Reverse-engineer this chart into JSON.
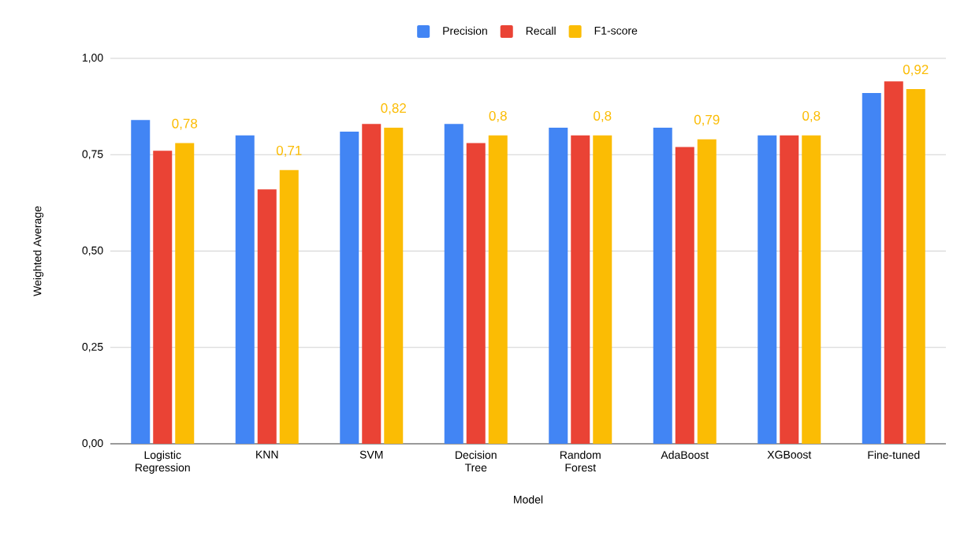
{
  "chart_data": {
    "type": "bar",
    "xlabel": "Model",
    "ylabel": "Weighted Average",
    "categories": [
      "Logistic Regression",
      "KNN",
      "SVM",
      "Decision Tree",
      "Random Forest",
      "AdaBoost",
      "XGBoost",
      "Fine-tuned"
    ],
    "series": [
      {
        "name": "Precision",
        "color": "#4285f4",
        "values": [
          0.84,
          0.8,
          0.81,
          0.83,
          0.82,
          0.82,
          0.8,
          0.91
        ]
      },
      {
        "name": "Recall",
        "color": "#ea4335",
        "values": [
          0.76,
          0.66,
          0.83,
          0.78,
          0.8,
          0.77,
          0.8,
          0.94
        ]
      },
      {
        "name": "F1-score",
        "color": "#fbbc04",
        "values": [
          0.78,
          0.71,
          0.82,
          0.8,
          0.8,
          0.79,
          0.8,
          0.92
        ],
        "value_labels": [
          "0,78",
          "0,71",
          "0,82",
          "0,8",
          "0,8",
          "0,79",
          "0,8",
          "0,92"
        ]
      }
    ],
    "ylim": [
      0,
      1
    ],
    "yticks": [
      {
        "value": 0,
        "label": "0,00"
      },
      {
        "value": 0.25,
        "label": "0,25"
      },
      {
        "value": 0.5,
        "label": "0,50"
      },
      {
        "value": 0.75,
        "label": "0,75"
      },
      {
        "value": 1,
        "label": "1,00"
      }
    ],
    "grid": "y",
    "legend": "top"
  }
}
